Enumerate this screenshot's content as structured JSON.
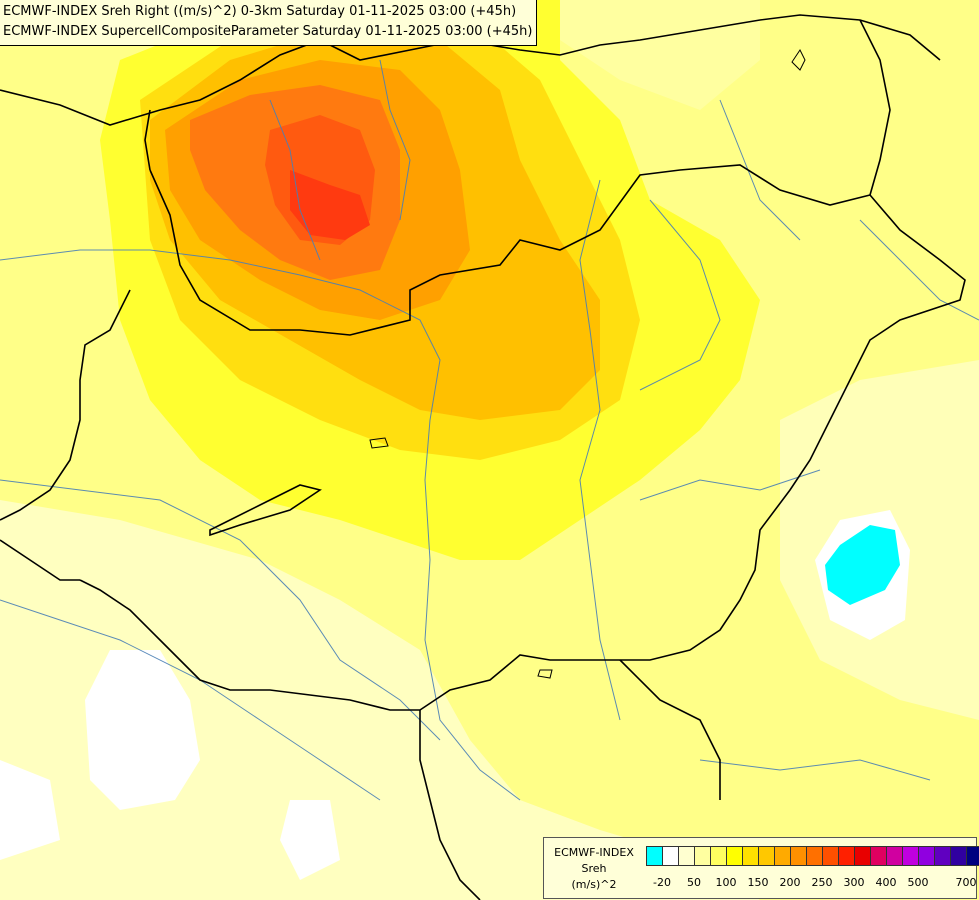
{
  "titles": {
    "line1": "ECMWF-INDEX Sreh Right ((m/s)^2) 0-3km Saturday 01-11-2025 03:00 (+45h)",
    "line2": "ECMWF-INDEX SupercellCompositeParameter Saturday 01-11-2025 03:00 (+45h)"
  },
  "legend": {
    "label1": "ECMWF-INDEX",
    "label2": "Sreh",
    "label3": "(m/s)^2",
    "colors": [
      "#00ffff",
      "#ffffff",
      "#ffffd0",
      "#ffffa0",
      "#ffff60",
      "#ffff00",
      "#ffe000",
      "#ffc800",
      "#ffaa00",
      "#ff9000",
      "#ff7000",
      "#ff5000",
      "#ff2000",
      "#e80000",
      "#e00060",
      "#d000a0",
      "#c000e0",
      "#9000e0",
      "#6000c0",
      "#3000a0",
      "#000080"
    ],
    "ticks": [
      "-20",
      "50",
      "100",
      "150",
      "200",
      "250",
      "300",
      "400",
      "500",
      "700"
    ]
  }
}
